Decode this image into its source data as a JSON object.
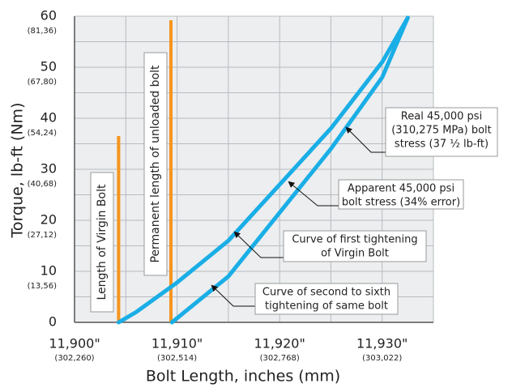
{
  "chart_data": {
    "type": "line",
    "x_label": "Bolt Length, inches (mm)",
    "y_label": "Torque, lb-ft (Nm)",
    "xlim": [
      11.9,
      11.935
    ],
    "ylim": [
      0,
      60
    ],
    "xticks": [
      {
        "value": 11.9,
        "label": "11,900\""
      },
      {
        "value": 11.91,
        "label": "11,910\""
      },
      {
        "value": 11.92,
        "label": "11,920\""
      },
      {
        "value": 11.93,
        "label": "11,930\""
      }
    ],
    "xticks_secondary": [
      {
        "value": 11.9,
        "label": "(302,260)"
      },
      {
        "value": 11.91,
        "label": "(302,514)"
      },
      {
        "value": 11.92,
        "label": "(302,768)"
      },
      {
        "value": 11.93,
        "label": "(303,022)"
      }
    ],
    "yticks": [
      0,
      10,
      20,
      30,
      40,
      50,
      60
    ],
    "yticks_secondary": [
      {
        "value": 10,
        "label": "(13,56)"
      },
      {
        "value": 20,
        "label": "(27,12)"
      },
      {
        "value": 30,
        "label": "(40,68)"
      },
      {
        "value": 40,
        "label": "(54,24)"
      },
      {
        "value": 50,
        "label": "(67,80)"
      },
      {
        "value": 60,
        "label": "(81,36)"
      }
    ],
    "xgrid": [
      11.9,
      11.905,
      11.91,
      11.915,
      11.92,
      11.925,
      11.93,
      11.935
    ],
    "ygrid": [
      0,
      5,
      10,
      15,
      20,
      25,
      30,
      35,
      40,
      45,
      50,
      55,
      60
    ],
    "series": [
      {
        "color": "#1aaee6",
        "x": [
          11.9043,
          11.906,
          11.91,
          11.915,
          11.92,
          11.925,
          11.93,
          11.9325
        ],
        "values": [
          0,
          2,
          7.8,
          16,
          27,
          38,
          51,
          59.7
        ]
      },
      {
        "color": "#1aaee6",
        "x": [
          11.9095,
          11.915,
          11.92,
          11.925,
          11.93,
          11.9325
        ],
        "values": [
          0,
          9,
          21.5,
          34,
          48,
          59.7
        ]
      }
    ],
    "reference_lines": [
      {
        "label": "Length of Virgin Bolt",
        "x": 11.9043,
        "top": 36.5,
        "color": "#f7941d"
      },
      {
        "label": "Permanent length of unloaded bolt",
        "x": 11.9094,
        "top": 59.2,
        "color": "#f7941d"
      }
    ],
    "annotations": [
      {
        "lines": [
          "Real 45,000 psi",
          "(310,275 MPa) bolt",
          "stress (37 ½ lb-ft)"
        ]
      },
      {
        "lines": [
          "Apparent 45,000 psi",
          "bolt stress (34% error)"
        ]
      },
      {
        "lines": [
          "Curve of first tightening",
          "of Virgin Bolt"
        ]
      },
      {
        "lines": [
          "Curve of second to sixth",
          "tightening of same bolt"
        ]
      }
    ]
  }
}
